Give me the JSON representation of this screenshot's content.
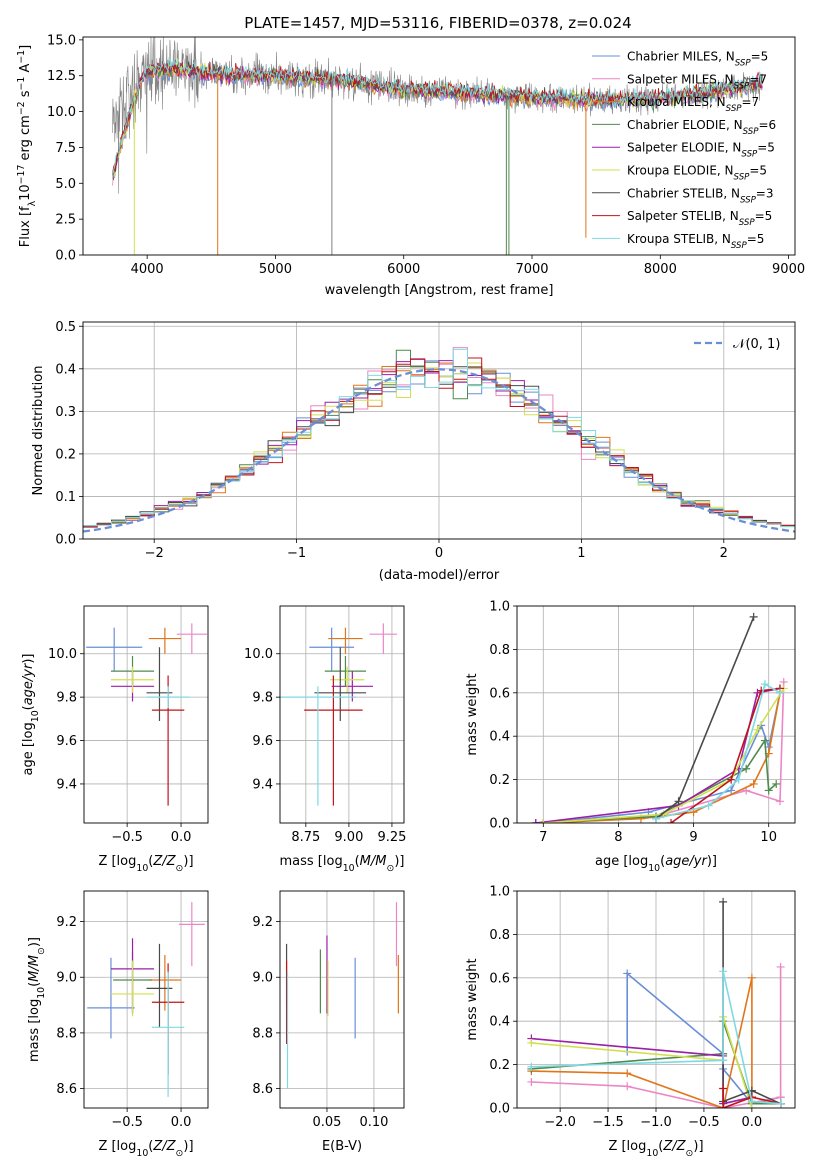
{
  "title": "PLATE=1457, MJD=53116, FIBERID=0378, z=0.024",
  "legend_spectrum": [
    {
      "label": "Chabrier MILES, N",
      "sub": "SSP",
      "suffix": "=5",
      "color": "#6a8fd8"
    },
    {
      "label": "Salpeter MILES, N",
      "sub": "SSP",
      "suffix": "=7",
      "color": "#ec86c6"
    },
    {
      "label": "Kroupa MILES, N",
      "sub": "SSP",
      "suffix": "=7",
      "color": "#e0761a"
    },
    {
      "label": "Chabrier ELODIE, N",
      "sub": "SSP",
      "suffix": "=6",
      "color": "#4f8a4f"
    },
    {
      "label": "Salpeter ELODIE, N",
      "sub": "SSP",
      "suffix": "=5",
      "color": "#9b1fa8"
    },
    {
      "label": "Kroupa ELODIE, N",
      "sub": "SSP",
      "suffix": "=5",
      "color": "#d2e050"
    },
    {
      "label": "Chabrier STELIB, N",
      "sub": "SSP",
      "suffix": "=3",
      "color": "#4a4a4a"
    },
    {
      "label": "Salpeter STELIB, N",
      "sub": "SSP",
      "suffix": "=5",
      "color": "#c0141c"
    },
    {
      "label": "Kroupa STELIB, N",
      "sub": "SSP",
      "suffix": "=5",
      "color": "#7fd9e3"
    }
  ],
  "chart_data": [
    {
      "type": "line",
      "id": "spectrum",
      "title": "PLATE=1457, MJD=53116, FIBERID=0378, z=0.024",
      "xlabel": "wavelength [Angstrom, rest frame]",
      "ylabel": "Flux [fλ10⁻¹⁷ erg cm⁻² s⁻¹ A⁻¹]",
      "xlim": [
        3500,
        9050
      ],
      "ylim": [
        0,
        15.2
      ],
      "xticks": [
        4000,
        5000,
        6000,
        7000,
        8000,
        9000
      ],
      "yticks": [
        0.0,
        2.5,
        5.0,
        7.5,
        10.0,
        12.5,
        15.0
      ],
      "observed_range": [
        3730,
        8800
      ],
      "continuum": [
        [
          3730,
          9.0
        ],
        [
          3800,
          10.5
        ],
        [
          3900,
          11.5
        ],
        [
          4000,
          12.8
        ],
        [
          4200,
          13.0
        ],
        [
          4500,
          12.6
        ],
        [
          5000,
          12.5
        ],
        [
          5500,
          12.2
        ],
        [
          6000,
          11.5
        ],
        [
          6500,
          11.3
        ],
        [
          7000,
          11.0
        ],
        [
          7500,
          10.8
        ],
        [
          8000,
          10.9
        ],
        [
          8500,
          11.5
        ],
        [
          8800,
          12.0
        ]
      ],
      "model_end_wavelengths": [
        7420,
        8800
      ],
      "dips": [
        {
          "x": 3900,
          "y": 0
        },
        {
          "x": 4550,
          "y": 0
        },
        {
          "x": 5440,
          "y": 0
        },
        {
          "x": 6800,
          "y": 0
        },
        {
          "x": 6820,
          "y": 0
        },
        {
          "x": 7420,
          "y": 1.2
        }
      ]
    },
    {
      "type": "bar",
      "id": "residuals",
      "xlabel": "(data-model)/error",
      "ylabel": "Normed distribution",
      "xlim": [
        -2.5,
        2.5
      ],
      "ylim": [
        0,
        0.51
      ],
      "xticks": [
        -2,
        -1,
        0,
        1,
        2
      ],
      "yticks": [
        0.0,
        0.1,
        0.2,
        0.3,
        0.4,
        0.5
      ],
      "bin_width": 0.1,
      "grid": true,
      "legend": "top-right",
      "reference_curve": "𝒩(0, 1)"
    },
    {
      "type": "scatter",
      "id": "age_vs_Z",
      "xlabel": "Z [log10(Z/Z⊙)]",
      "ylabel": "age [log10(age/yr)]",
      "xlim": [
        -0.9,
        0.25
      ],
      "ylim": [
        9.22,
        10.22
      ],
      "xticks": [
        -0.5,
        0.0
      ],
      "yticks": [
        9.4,
        9.6,
        9.8,
        10.0
      ],
      "points": [
        {
          "series": "Chabrier MILES",
          "x": -0.62,
          "xerr": 0.26,
          "y": 10.03,
          "ylo": 9.92,
          "yhi": 10.12
        },
        {
          "series": "Salpeter MILES",
          "x": 0.1,
          "xerr": 0.14,
          "y": 10.09,
          "ylo": 10.0,
          "yhi": 10.14
        },
        {
          "series": "Kroupa MILES",
          "x": -0.15,
          "xerr": 0.15,
          "y": 10.07,
          "ylo": 10.0,
          "yhi": 10.12
        },
        {
          "series": "Chabrier ELODIE",
          "x": -0.45,
          "xerr": 0.2,
          "y": 9.92,
          "ylo": 9.85,
          "yhi": 9.99
        },
        {
          "series": "Salpeter ELODIE",
          "x": -0.45,
          "xerr": 0.2,
          "y": 9.85,
          "ylo": 9.78,
          "yhi": 9.92
        },
        {
          "series": "Kroupa ELODIE",
          "x": -0.45,
          "xerr": 0.2,
          "y": 9.88,
          "ylo": 9.82,
          "yhi": 9.94
        },
        {
          "series": "Chabrier STELIB",
          "x": -0.2,
          "xerr": 0.12,
          "y": 9.82,
          "ylo": 9.69,
          "yhi": 10.03
        },
        {
          "series": "Salpeter STELIB",
          "x": -0.12,
          "xerr": 0.15,
          "y": 9.74,
          "ylo": 9.3,
          "yhi": 9.9
        },
        {
          "series": "Kroupa STELIB",
          "x": -0.12,
          "xerr": 0.2,
          "y": 9.8,
          "ylo": 9.75,
          "yhi": 9.85
        }
      ]
    },
    {
      "type": "scatter",
      "id": "age_vs_mass",
      "xlabel": "mass [log10(M/M⊙)]",
      "ylabel": "",
      "xlim": [
        8.6,
        9.32
      ],
      "ylim": [
        9.22,
        10.22
      ],
      "xticks": [
        8.75,
        9.0,
        9.25
      ],
      "yticks": [
        9.4,
        9.6,
        9.8,
        10.0
      ],
      "points": [
        {
          "series": "Chabrier MILES",
          "x": 8.9,
          "xerr": 0.13,
          "y": 10.03,
          "ylo": 9.92,
          "yhi": 10.12
        },
        {
          "series": "Salpeter MILES",
          "x": 9.2,
          "xerr": 0.08,
          "y": 10.09,
          "ylo": 10.0,
          "yhi": 10.14
        },
        {
          "series": "Kroupa MILES",
          "x": 8.98,
          "xerr": 0.1,
          "y": 10.07,
          "ylo": 10.0,
          "yhi": 10.12
        },
        {
          "series": "Chabrier ELODIE",
          "x": 8.98,
          "xerr": 0.12,
          "y": 9.92,
          "ylo": 9.85,
          "yhi": 9.99
        },
        {
          "series": "Salpeter ELODIE",
          "x": 9.02,
          "xerr": 0.12,
          "y": 9.85,
          "ylo": 9.78,
          "yhi": 9.92
        },
        {
          "series": "Kroupa ELODIE",
          "x": 8.99,
          "xerr": 0.1,
          "y": 9.88,
          "ylo": 9.82,
          "yhi": 9.94
        },
        {
          "series": "Chabrier STELIB",
          "x": 8.95,
          "xerr": 0.15,
          "y": 9.82,
          "ylo": 9.69,
          "yhi": 10.03
        },
        {
          "series": "Salpeter STELIB",
          "x": 8.91,
          "xerr": 0.17,
          "y": 9.74,
          "ylo": 9.3,
          "yhi": 9.9
        },
        {
          "series": "Kroupa STELIB",
          "x": 8.82,
          "xerr": 0.22,
          "y": 9.8,
          "ylo": 9.3,
          "yhi": 9.85
        }
      ]
    },
    {
      "type": "line",
      "id": "massweight_vs_age",
      "xlabel": "age  [log10(age/yr)]",
      "ylabel": "mass weight",
      "xlim": [
        6.65,
        10.35
      ],
      "ylim": [
        0,
        1.0
      ],
      "xticks": [
        7,
        8,
        9,
        10
      ],
      "yticks": [
        0.0,
        0.2,
        0.4,
        0.6,
        0.8,
        1.0
      ],
      "grid": true,
      "series": [
        {
          "name": "Chabrier MILES",
          "points": [
            [
              7.0,
              0.0
            ],
            [
              8.4,
              0.05
            ],
            [
              9.5,
              0.15
            ],
            [
              9.9,
              0.45
            ],
            [
              10.0,
              0.35
            ],
            [
              10.15,
              0.6
            ]
          ]
        },
        {
          "name": "Salpeter MILES",
          "points": [
            [
              6.9,
              0.0
            ],
            [
              8.5,
              0.03
            ],
            [
              9.7,
              0.15
            ],
            [
              10.15,
              0.1
            ],
            [
              10.2,
              0.65
            ]
          ]
        },
        {
          "name": "Kroupa MILES",
          "points": [
            [
              7.0,
              0.0
            ],
            [
              8.3,
              0.02
            ],
            [
              9.0,
              0.05
            ],
            [
              9.8,
              0.18
            ],
            [
              10.0,
              0.32
            ],
            [
              10.15,
              0.6
            ]
          ]
        },
        {
          "name": "Chabrier ELODIE",
          "points": [
            [
              6.9,
              0.0
            ],
            [
              8.5,
              0.03
            ],
            [
              9.7,
              0.25
            ],
            [
              9.95,
              0.38
            ],
            [
              10.0,
              0.15
            ],
            [
              10.1,
              0.18
            ]
          ]
        },
        {
          "name": "Salpeter ELODIE",
          "points": [
            [
              6.9,
              0.0
            ],
            [
              8.8,
              0.08
            ],
            [
              9.6,
              0.25
            ],
            [
              9.85,
              0.6
            ],
            [
              10.15,
              0.62
            ]
          ]
        },
        {
          "name": "Kroupa ELODIE",
          "points": [
            [
              7.0,
              0.0
            ],
            [
              8.6,
              0.04
            ],
            [
              9.5,
              0.2
            ],
            [
              9.85,
              0.43
            ],
            [
              10.2,
              0.62
            ]
          ]
        },
        {
          "name": "Chabrier STELIB",
          "points": [
            [
              8.5,
              0.02
            ],
            [
              8.8,
              0.1
            ],
            [
              9.8,
              0.95
            ]
          ]
        },
        {
          "name": "Salpeter STELIB",
          "points": [
            [
              8.7,
              0.0
            ],
            [
              9.5,
              0.2
            ],
            [
              9.9,
              0.61
            ],
            [
              10.15,
              0.62
            ]
          ]
        },
        {
          "name": "Kroupa STELIB",
          "points": [
            [
              8.5,
              0.02
            ],
            [
              9.2,
              0.08
            ],
            [
              9.6,
              0.2
            ],
            [
              9.95,
              0.64
            ],
            [
              10.15,
              0.6
            ]
          ]
        }
      ]
    },
    {
      "type": "scatter",
      "id": "mass_vs_Z",
      "xlabel": "Z [log10(Z/Z⊙)]",
      "ylabel": "mass [log10(M/M⊙)]",
      "xlim": [
        -0.9,
        0.25
      ],
      "ylim": [
        8.53,
        9.31
      ],
      "xticks": [
        -0.5,
        0.0
      ],
      "yticks": [
        8.6,
        8.8,
        9.0,
        9.2
      ],
      "points": [
        {
          "series": "Chabrier MILES",
          "x": -0.65,
          "xerr": 0.22,
          "y": 8.89,
          "ylo": 8.78,
          "yhi": 9.07
        },
        {
          "series": "Salpeter MILES",
          "x": 0.1,
          "xerr": 0.12,
          "y": 9.19,
          "ylo": 9.04,
          "yhi": 9.27
        },
        {
          "series": "Kroupa MILES",
          "x": -0.15,
          "xerr": 0.15,
          "y": 8.99,
          "ylo": 8.88,
          "yhi": 9.08
        },
        {
          "series": "Chabrier ELODIE",
          "x": -0.45,
          "xerr": 0.18,
          "y": 8.99,
          "ylo": 8.87,
          "yhi": 9.09
        },
        {
          "series": "Salpeter ELODIE",
          "x": -0.45,
          "xerr": 0.2,
          "y": 9.03,
          "ylo": 8.87,
          "yhi": 9.14
        },
        {
          "series": "Kroupa ELODIE",
          "x": -0.45,
          "xerr": 0.2,
          "y": 8.94,
          "ylo": 8.86,
          "yhi": 9.06
        },
        {
          "series": "Chabrier STELIB",
          "x": -0.2,
          "xerr": 0.12,
          "y": 8.96,
          "ylo": 8.82,
          "yhi": 9.12
        },
        {
          "series": "Salpeter STELIB",
          "x": -0.12,
          "xerr": 0.15,
          "y": 8.91,
          "ylo": 8.65,
          "yhi": 9.05
        },
        {
          "series": "Kroupa STELIB",
          "x": -0.12,
          "xerr": 0.15,
          "y": 8.82,
          "ylo": 8.57,
          "yhi": 9.02
        }
      ]
    },
    {
      "type": "scatter",
      "id": "mass_vs_EBV",
      "xlabel": "E(B-V)",
      "ylabel": "",
      "xlim": [
        0.0,
        0.132
      ],
      "ylim": [
        8.53,
        9.31
      ],
      "xticks": [
        0.05,
        0.1
      ],
      "yticks": [
        8.6,
        8.8,
        9.0,
        9.2
      ],
      "points": [
        {
          "series": "Chabrier MILES",
          "x": 0.08,
          "ylo": 8.78,
          "yhi": 9.07
        },
        {
          "series": "Salpeter MILES",
          "x": 0.124,
          "ylo": 9.04,
          "yhi": 9.27
        },
        {
          "series": "Kroupa MILES",
          "x": 0.126,
          "ylo": 8.87,
          "yhi": 9.08
        },
        {
          "series": "Chabrier ELODIE",
          "x": 0.043,
          "ylo": 8.87,
          "yhi": 9.1
        },
        {
          "series": "Salpeter ELODIE",
          "x": 0.05,
          "ylo": 8.87,
          "yhi": 9.15
        },
        {
          "series": "Kroupa ELODIE",
          "x": 0.051,
          "ylo": 8.86,
          "yhi": 9.06
        },
        {
          "series": "Chabrier STELIB",
          "x": 0.007,
          "ylo": 8.9,
          "yhi": 9.12
        },
        {
          "series": "Salpeter STELIB",
          "x": 0.007,
          "ylo": 8.76,
          "yhi": 9.06
        },
        {
          "series": "Kroupa STELIB",
          "x": 0.008,
          "ylo": 8.6,
          "yhi": 9.02
        }
      ]
    },
    {
      "type": "line",
      "id": "massweight_vs_Z",
      "xlabel": "Z [log10(Z/Z⊙)]",
      "ylabel": "mass weight",
      "xlim": [
        -2.45,
        0.45
      ],
      "ylim": [
        0,
        1.0
      ],
      "xticks": [
        -2.0,
        -1.5,
        -1.0,
        -0.5,
        0.0
      ],
      "yticks": [
        0.0,
        0.2,
        0.4,
        0.6,
        0.8,
        1.0
      ],
      "grid": true,
      "series": [
        {
          "name": "Chabrier MILES",
          "points": [
            [
              -1.3,
              0.26
            ],
            [
              -1.3,
              0.62
            ],
            [
              -0.3,
              0.25
            ],
            [
              -0.3,
              0.18
            ],
            [
              0.0,
              0.02
            ],
            [
              0.3,
              0.05
            ]
          ]
        },
        {
          "name": "Salpeter MILES",
          "points": [
            [
              -2.3,
              0.12
            ],
            [
              -1.3,
              0.1
            ],
            [
              -0.3,
              0.0
            ],
            [
              0.3,
              0.05
            ],
            [
              0.3,
              0.65
            ]
          ]
        },
        {
          "name": "Kroupa MILES",
          "points": [
            [
              -2.3,
              0.17
            ],
            [
              -1.3,
              0.16
            ],
            [
              -0.3,
              0.0
            ],
            [
              0.0,
              0.6
            ],
            [
              0.0,
              0.03
            ],
            [
              0.3,
              0.02
            ]
          ]
        },
        {
          "name": "Chabrier ELODIE",
          "points": [
            [
              -2.3,
              0.18
            ],
            [
              -0.3,
              0.25
            ],
            [
              -0.3,
              0.4
            ],
            [
              0.0,
              0.02
            ],
            [
              0.3,
              0.02
            ]
          ]
        },
        {
          "name": "Salpeter ELODIE",
          "points": [
            [
              -2.3,
              0.32
            ],
            [
              -0.3,
              0.24
            ],
            [
              -0.3,
              0.02
            ],
            [
              0.0,
              0.05
            ]
          ]
        },
        {
          "name": "Kroupa ELODIE",
          "points": [
            [
              -2.3,
              0.3
            ],
            [
              -0.3,
              0.22
            ],
            [
              -0.3,
              0.42
            ],
            [
              0.0,
              0.0
            ]
          ]
        },
        {
          "name": "Chabrier STELIB",
          "points": [
            [
              -0.3,
              0.95
            ],
            [
              -0.3,
              0.03
            ],
            [
              0.0,
              0.08
            ],
            [
              0.3,
              0.02
            ]
          ]
        },
        {
          "name": "Salpeter STELIB",
          "points": [
            [
              -0.3,
              0.09
            ],
            [
              -0.3,
              0.0
            ],
            [
              0.0,
              0.05
            ],
            [
              0.3,
              0.02
            ]
          ]
        },
        {
          "name": "Kroupa STELIB",
          "points": [
            [
              -2.3,
              0.19
            ],
            [
              -0.3,
              0.22
            ],
            [
              -0.3,
              0.63
            ],
            [
              0.0,
              0.03
            ],
            [
              0.3,
              0.02
            ]
          ]
        }
      ]
    }
  ]
}
